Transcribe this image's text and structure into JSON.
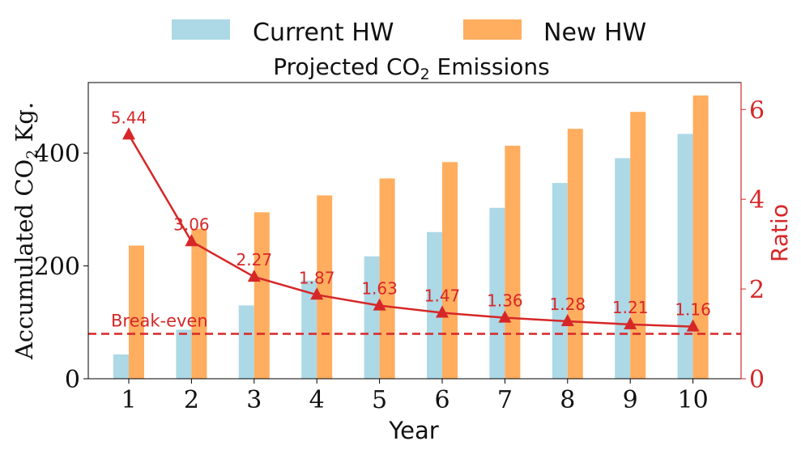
{
  "chart_data": {
    "type": "bar",
    "title_main": "Projected CO",
    "title_sub": "2",
    "title_tail": " Emissions",
    "xlabel": "Year",
    "ylabel_main": "Accumulated CO",
    "ylabel_sub": "2",
    "ylabel_tail": " Kg.",
    "y2label": "Ratio",
    "categories": [
      "1",
      "2",
      "3",
      "4",
      "5",
      "6",
      "7",
      "8",
      "9",
      "10"
    ],
    "ylim": [
      0,
      525
    ],
    "y_ticks": [
      "0",
      "200",
      "400"
    ],
    "y2lim": [
      0,
      6.6
    ],
    "y2_ticks": [
      "0",
      "2",
      "4",
      "6"
    ],
    "series": [
      {
        "name": "Current HW",
        "color": "#add8e6",
        "values": [
          43,
          87,
          130,
          174,
          217,
          260,
          303,
          347,
          391,
          434
        ]
      },
      {
        "name": "New HW",
        "color": "#ffad5f",
        "values": [
          236,
          266,
          295,
          325,
          355,
          384,
          413,
          443,
          473,
          502
        ]
      }
    ],
    "ratio_series": {
      "color": "#d62728",
      "values": [
        5.44,
        3.06,
        2.27,
        1.87,
        1.63,
        1.47,
        1.36,
        1.28,
        1.21,
        1.16
      ],
      "labels": [
        "5.44",
        "3.06",
        "2.27",
        "1.87",
        "1.63",
        "1.47",
        "1.36",
        "1.28",
        "1.21",
        "1.16"
      ]
    },
    "break_even": {
      "value": 1.0,
      "label": "Break-even"
    },
    "legend_placement": "top-center",
    "grid": false
  }
}
